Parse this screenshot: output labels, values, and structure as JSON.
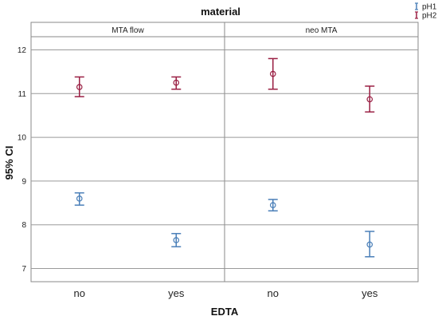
{
  "chart_data": {
    "type": "errorbar",
    "title": "material",
    "xlabel": "EDTA",
    "ylabel": "95% CI",
    "ylim": [
      6.7,
      12.3
    ],
    "yticks": [
      7,
      8,
      9,
      10,
      11,
      12
    ],
    "categories": [
      "no",
      "yes"
    ],
    "panels": [
      {
        "name": "MTA flow",
        "series": [
          {
            "name": "pH1",
            "color": "#4a7fb8",
            "points": [
              {
                "x": "no",
                "mean": 8.6,
                "lower": 8.45,
                "upper": 8.73
              },
              {
                "x": "yes",
                "mean": 7.65,
                "lower": 7.5,
                "upper": 7.8
              }
            ]
          },
          {
            "name": "pH2",
            "color": "#9a1f43",
            "points": [
              {
                "x": "no",
                "mean": 11.15,
                "lower": 10.93,
                "upper": 11.38
              },
              {
                "x": "yes",
                "mean": 11.25,
                "lower": 11.1,
                "upper": 11.38
              }
            ]
          }
        ]
      },
      {
        "name": "neo MTA",
        "series": [
          {
            "name": "pH1",
            "color": "#4a7fb8",
            "points": [
              {
                "x": "no",
                "mean": 8.45,
                "lower": 8.32,
                "upper": 8.58
              },
              {
                "x": "yes",
                "mean": 7.55,
                "lower": 7.27,
                "upper": 7.85
              }
            ]
          },
          {
            "name": "pH2",
            "color": "#9a1f43",
            "points": [
              {
                "x": "no",
                "mean": 11.45,
                "lower": 11.1,
                "upper": 11.8
              },
              {
                "x": "yes",
                "mean": 10.87,
                "lower": 10.58,
                "upper": 11.17
              }
            ]
          }
        ]
      }
    ],
    "legend": {
      "position": "top-right",
      "entries": [
        {
          "name": "pH1",
          "color": "#4a7fb8"
        },
        {
          "name": "pH2",
          "color": "#9a1f43"
        }
      ]
    },
    "grid": true
  }
}
